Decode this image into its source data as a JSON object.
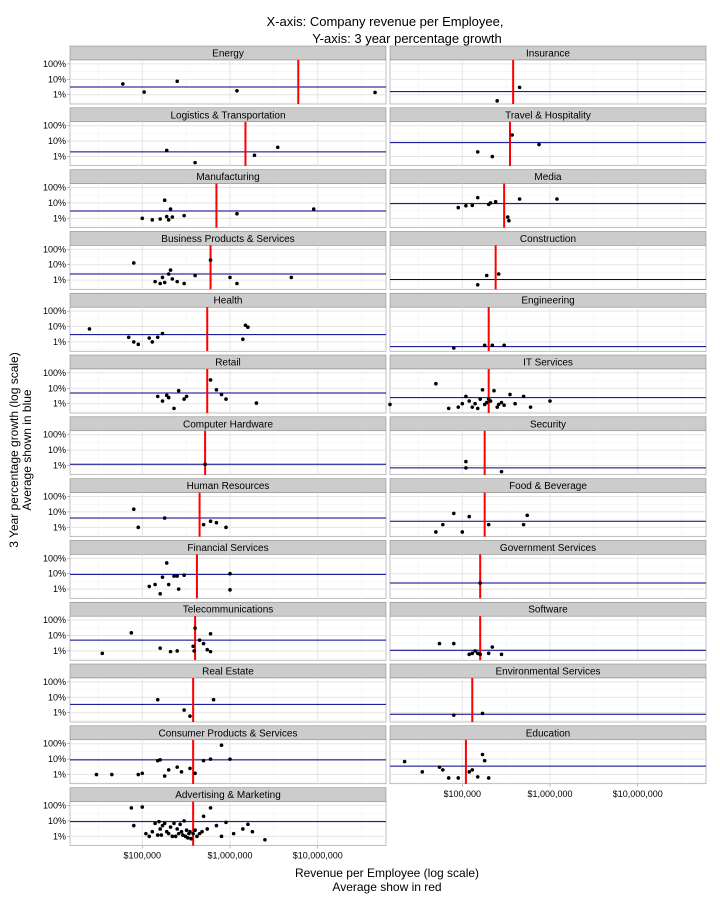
{
  "chart_data": {
    "type": "scatter",
    "title_line1": "X-axis: Company revenue per Employee,",
    "title_line2": "Y-axis: 3 year percentage growth",
    "xlabel_line1": "Revenue per Employee (log scale)",
    "xlabel_line2": "Average show in red",
    "ylabel_line1": "3 Year percentage growth (log scale)",
    "ylabel_line2": "Average shown in blue",
    "x_scale": "log10",
    "y_scale": "log10",
    "xlim": [
      15000,
      60000000
    ],
    "ylim": [
      0.25,
      180
    ],
    "x_ticks": [
      100000,
      1000000,
      10000000
    ],
    "x_tick_labels": [
      "$100,000",
      "$1,000,000",
      "$10,000,000"
    ],
    "y_ticks": [
      1,
      10,
      100
    ],
    "y_tick_labels": [
      "1%",
      "10%",
      "100%"
    ],
    "x_mean_line_color": "#ff0000",
    "y_mean_line_color": "#00008b",
    "grid": true,
    "layout": "facet grid, 2 columns",
    "facets": [
      {
        "name": "Energy",
        "x_mean": 6000000,
        "y_mean": 3.2,
        "points": [
          [
            60000,
            5
          ],
          [
            105000,
            1.5
          ],
          [
            250000,
            7.5
          ],
          [
            1200000,
            1.8
          ],
          [
            45000000,
            1.4
          ]
        ]
      },
      {
        "name": "Insurance",
        "x_mean": 380000,
        "y_mean": 1.6,
        "points": [
          [
            250000,
            0.4
          ],
          [
            450000,
            3
          ]
        ]
      },
      {
        "name": "Logistics & Transportation",
        "x_mean": 1500000,
        "y_mean": 2,
        "points": [
          [
            190000,
            2.5
          ],
          [
            400000,
            0.4
          ],
          [
            1900000,
            1.2
          ],
          [
            3500000,
            4
          ]
        ]
      },
      {
        "name": "Travel & Hospitality",
        "x_mean": 350000,
        "y_mean": 8,
        "points": [
          [
            150000,
            2
          ],
          [
            220000,
            1
          ],
          [
            370000,
            25
          ],
          [
            750000,
            6
          ]
        ]
      },
      {
        "name": "Manufacturing",
        "x_mean": 700000,
        "y_mean": 3,
        "points": [
          [
            100000,
            1
          ],
          [
            130000,
            0.8
          ],
          [
            160000,
            0.9
          ],
          [
            180000,
            15
          ],
          [
            190000,
            1.3
          ],
          [
            200000,
            0.8
          ],
          [
            210000,
            4
          ],
          [
            220000,
            1.2
          ],
          [
            300000,
            1.5
          ],
          [
            1200000,
            2
          ],
          [
            9000000,
            4
          ]
        ]
      },
      {
        "name": "Media",
        "x_mean": 300000,
        "y_mean": 9,
        "points": [
          [
            90000,
            5
          ],
          [
            110000,
            6.5
          ],
          [
            130000,
            7
          ],
          [
            150000,
            22
          ],
          [
            200000,
            8
          ],
          [
            210000,
            10
          ],
          [
            240000,
            12
          ],
          [
            330000,
            1.2
          ],
          [
            340000,
            0.7
          ],
          [
            1200000,
            18
          ],
          [
            450000,
            18
          ]
        ]
      },
      {
        "name": "Business Products & Services",
        "x_mean": 600000,
        "y_mean": 2.5,
        "points": [
          [
            80000,
            13
          ],
          [
            140000,
            0.8
          ],
          [
            160000,
            0.6
          ],
          [
            170000,
            1.5
          ],
          [
            180000,
            0.7
          ],
          [
            200000,
            2.5
          ],
          [
            210000,
            4.5
          ],
          [
            220000,
            1.2
          ],
          [
            250000,
            0.8
          ],
          [
            300000,
            0.6
          ],
          [
            400000,
            2
          ],
          [
            600000,
            20
          ],
          [
            1000000,
            1.5
          ],
          [
            1200000,
            0.6
          ],
          [
            5000000,
            1.5
          ]
        ]
      },
      {
        "name": "Construction",
        "x_mean": 240000,
        "y_mean": 1.1,
        "points": [
          [
            150000,
            0.5
          ],
          [
            190000,
            2
          ],
          [
            260000,
            2.5
          ]
        ]
      },
      {
        "name": "Health",
        "x_mean": 550000,
        "y_mean": 3,
        "points": [
          [
            25000,
            7
          ],
          [
            70000,
            2
          ],
          [
            80000,
            1
          ],
          [
            90000,
            0.7
          ],
          [
            120000,
            1.8
          ],
          [
            130000,
            1
          ],
          [
            150000,
            2
          ],
          [
            170000,
            3.5
          ],
          [
            1500000,
            12
          ],
          [
            1600000,
            9
          ],
          [
            1400000,
            1.5
          ]
        ]
      },
      {
        "name": "Engineering",
        "x_mean": 200000,
        "y_mean": 0.5,
        "points": [
          [
            80000,
            0.4
          ],
          [
            180000,
            0.6
          ],
          [
            220000,
            0.6
          ],
          [
            300000,
            0.6
          ]
        ]
      },
      {
        "name": "Retail",
        "x_mean": 550000,
        "y_mean": 5,
        "points": [
          [
            150000,
            3
          ],
          [
            170000,
            1.5
          ],
          [
            190000,
            3.5
          ],
          [
            200000,
            2.5
          ],
          [
            230000,
            0.5
          ],
          [
            260000,
            7
          ],
          [
            300000,
            2
          ],
          [
            320000,
            3
          ],
          [
            600000,
            35
          ],
          [
            700000,
            8
          ],
          [
            800000,
            4
          ],
          [
            900000,
            2
          ],
          [
            2000000,
            1.1
          ]
        ]
      },
      {
        "name": "IT Services",
        "x_mean": 200000,
        "y_mean": 2.5,
        "points": [
          [
            15000,
            0.9
          ],
          [
            50000,
            20
          ],
          [
            70000,
            0.5
          ],
          [
            90000,
            0.6
          ],
          [
            100000,
            1
          ],
          [
            110000,
            3
          ],
          [
            120000,
            1.5
          ],
          [
            130000,
            0.6
          ],
          [
            140000,
            1
          ],
          [
            150000,
            0.5
          ],
          [
            160000,
            2
          ],
          [
            170000,
            8
          ],
          [
            180000,
            0.9
          ],
          [
            190000,
            1.2
          ],
          [
            200000,
            2
          ],
          [
            210000,
            1.5
          ],
          [
            230000,
            7
          ],
          [
            250000,
            0.6
          ],
          [
            260000,
            0.9
          ],
          [
            280000,
            1.2
          ],
          [
            300000,
            0.8
          ],
          [
            350000,
            4
          ],
          [
            400000,
            1
          ],
          [
            500000,
            3
          ],
          [
            600000,
            0.6
          ],
          [
            1000000,
            1.5
          ]
        ]
      },
      {
        "name": "Computer Hardware",
        "x_mean": 520000,
        "y_mean": 1.2,
        "points": [
          [
            520000,
            1.2
          ]
        ]
      },
      {
        "name": "Security",
        "x_mean": 180000,
        "y_mean": 0.7,
        "points": [
          [
            110000,
            1.8
          ],
          [
            110000,
            0.7
          ],
          [
            280000,
            0.4
          ]
        ]
      },
      {
        "name": "Human Resources",
        "x_mean": 450000,
        "y_mean": 4,
        "points": [
          [
            80000,
            15
          ],
          [
            90000,
            1
          ],
          [
            180000,
            4
          ],
          [
            500000,
            1.5
          ],
          [
            600000,
            2.5
          ],
          [
            700000,
            2
          ],
          [
            900000,
            1
          ]
        ]
      },
      {
        "name": "Food & Beverage",
        "x_mean": 180000,
        "y_mean": 2.5,
        "points": [
          [
            50000,
            0.5
          ],
          [
            60000,
            1.5
          ],
          [
            80000,
            8
          ],
          [
            100000,
            0.5
          ],
          [
            120000,
            5
          ],
          [
            200000,
            1.5
          ],
          [
            500000,
            1.5
          ],
          [
            550000,
            6
          ]
        ]
      },
      {
        "name": "Financial Services",
        "x_mean": 420000,
        "y_mean": 9,
        "points": [
          [
            120000,
            1.5
          ],
          [
            140000,
            2
          ],
          [
            160000,
            0.5
          ],
          [
            170000,
            6
          ],
          [
            190000,
            50
          ],
          [
            200000,
            2
          ],
          [
            230000,
            7
          ],
          [
            250000,
            7
          ],
          [
            260000,
            1
          ],
          [
            300000,
            8
          ],
          [
            1000000,
            10
          ],
          [
            1000000,
            0.9
          ]
        ]
      },
      {
        "name": "Government Services",
        "x_mean": 160000,
        "y_mean": 2.5,
        "points": [
          [
            160000,
            2.5
          ]
        ]
      },
      {
        "name": "Telecommunications",
        "x_mean": 400000,
        "y_mean": 5,
        "points": [
          [
            35000,
            0.7
          ],
          [
            75000,
            15
          ],
          [
            160000,
            1.5
          ],
          [
            210000,
            0.9
          ],
          [
            250000,
            1
          ],
          [
            380000,
            2
          ],
          [
            390000,
            1
          ],
          [
            400000,
            30
          ],
          [
            450000,
            5
          ],
          [
            500000,
            3
          ],
          [
            550000,
            1.2
          ],
          [
            600000,
            0.9
          ],
          [
            600000,
            13
          ]
        ]
      },
      {
        "name": "Software",
        "x_mean": 160000,
        "y_mean": 1.1,
        "points": [
          [
            55000,
            3
          ],
          [
            80000,
            3
          ],
          [
            120000,
            0.6
          ],
          [
            130000,
            0.7
          ],
          [
            140000,
            1
          ],
          [
            150000,
            0.7
          ],
          [
            160000,
            0.6
          ],
          [
            200000,
            0.7
          ],
          [
            220000,
            1.8
          ],
          [
            280000,
            0.6
          ]
        ]
      },
      {
        "name": "Real Estate",
        "x_mean": 380000,
        "y_mean": 3.5,
        "points": [
          [
            150000,
            7
          ],
          [
            300000,
            1.5
          ],
          [
            350000,
            0.6
          ],
          [
            650000,
            7
          ]
        ]
      },
      {
        "name": "Environmental Services",
        "x_mean": 130000,
        "y_mean": 0.8,
        "points": [
          [
            80000,
            0.7
          ],
          [
            170000,
            0.9
          ]
        ]
      },
      {
        "name": "Consumer Products & Services",
        "x_mean": 380000,
        "y_mean": 9,
        "points": [
          [
            30000,
            1
          ],
          [
            45000,
            1
          ],
          [
            90000,
            1
          ],
          [
            100000,
            1.2
          ],
          [
            150000,
            8
          ],
          [
            160000,
            9
          ],
          [
            180000,
            0.8
          ],
          [
            200000,
            2
          ],
          [
            250000,
            3
          ],
          [
            280000,
            1.5
          ],
          [
            350000,
            2.5
          ],
          [
            400000,
            1.2
          ],
          [
            500000,
            8
          ],
          [
            600000,
            10
          ],
          [
            800000,
            80
          ],
          [
            1000000,
            10
          ]
        ]
      },
      {
        "name": "Education",
        "x_mean": 110000,
        "y_mean": 3.5,
        "points": [
          [
            22000,
            7
          ],
          [
            35000,
            1.5
          ],
          [
            55000,
            3
          ],
          [
            60000,
            2
          ],
          [
            70000,
            0.6
          ],
          [
            90000,
            0.6
          ],
          [
            120000,
            1.5
          ],
          [
            130000,
            2
          ],
          [
            150000,
            0.7
          ],
          [
            170000,
            20
          ],
          [
            180000,
            8
          ],
          [
            200000,
            0.6
          ]
        ]
      },
      {
        "name": "Advertising & Marketing",
        "x_mean": 380000,
        "y_mean": 9,
        "points": [
          [
            75000,
            70
          ],
          [
            80000,
            5
          ],
          [
            100000,
            80
          ],
          [
            110000,
            1.5
          ],
          [
            120000,
            1
          ],
          [
            130000,
            2
          ],
          [
            140000,
            7
          ],
          [
            150000,
            1.2
          ],
          [
            155000,
            9
          ],
          [
            160000,
            3
          ],
          [
            165000,
            1.2
          ],
          [
            170000,
            5
          ],
          [
            180000,
            7
          ],
          [
            190000,
            2
          ],
          [
            200000,
            1.5
          ],
          [
            210000,
            4
          ],
          [
            220000,
            1
          ],
          [
            230000,
            7
          ],
          [
            240000,
            1
          ],
          [
            250000,
            3
          ],
          [
            260000,
            1.5
          ],
          [
            270000,
            6
          ],
          [
            280000,
            2
          ],
          [
            290000,
            1.2
          ],
          [
            300000,
            10
          ],
          [
            310000,
            1
          ],
          [
            320000,
            2.5
          ],
          [
            330000,
            0.8
          ],
          [
            340000,
            1.5
          ],
          [
            350000,
            2
          ],
          [
            360000,
            0.7
          ],
          [
            380000,
            1.5
          ],
          [
            400000,
            2.5
          ],
          [
            420000,
            1
          ],
          [
            450000,
            1.5
          ],
          [
            480000,
            2
          ],
          [
            500000,
            20
          ],
          [
            550000,
            3
          ],
          [
            600000,
            70
          ],
          [
            700000,
            5
          ],
          [
            800000,
            1
          ],
          [
            900000,
            8
          ],
          [
            1100000,
            1.5
          ],
          [
            1400000,
            3
          ],
          [
            1600000,
            6
          ],
          [
            1800000,
            2
          ],
          [
            2500000,
            0.6
          ]
        ]
      }
    ]
  }
}
